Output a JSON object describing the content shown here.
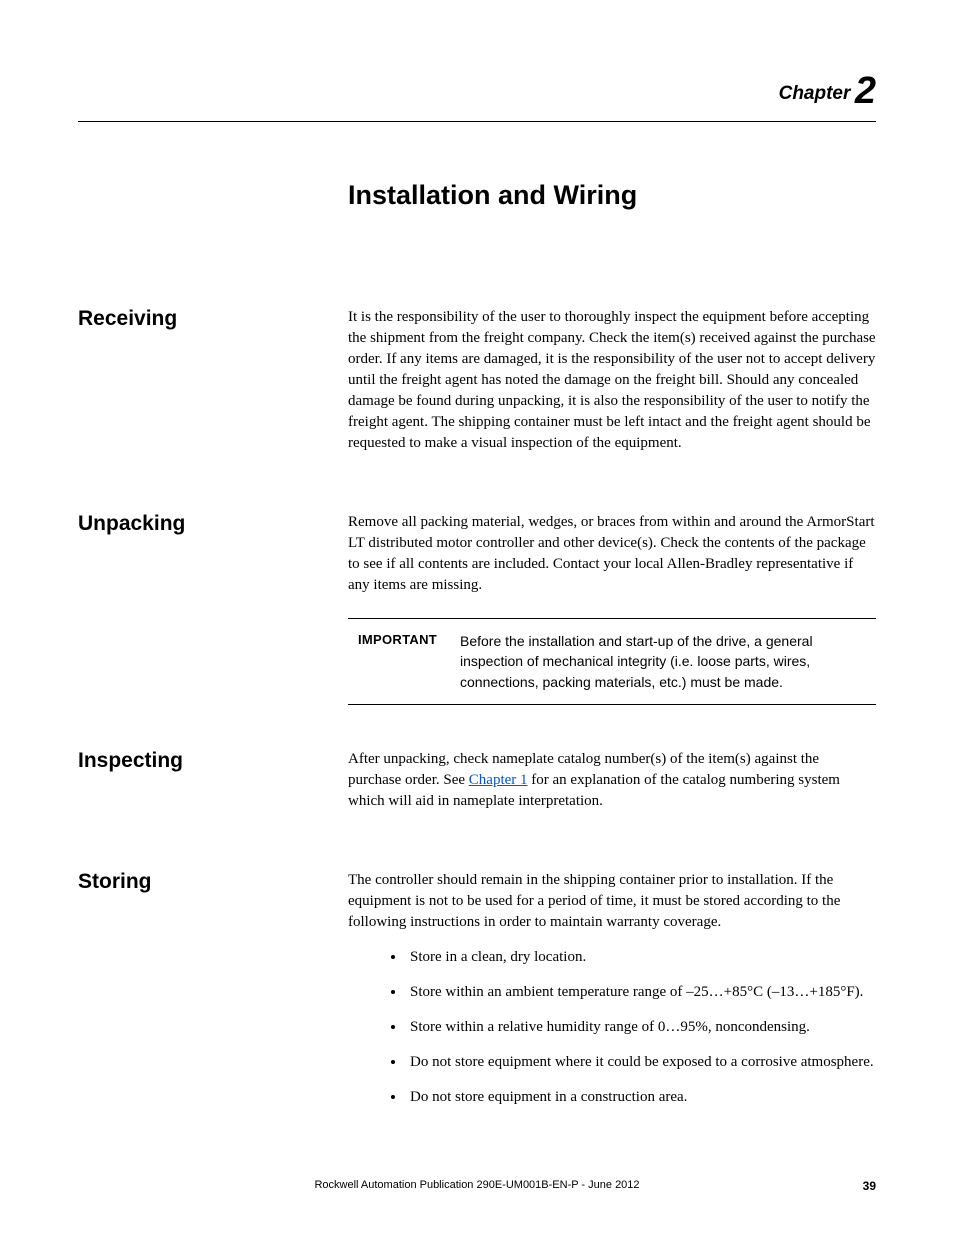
{
  "chapter": {
    "label": "Chapter",
    "number": "2"
  },
  "title": "Installation and Wiring",
  "sections": {
    "receiving": {
      "heading": "Receiving",
      "body": "It is the responsibility of the user to thoroughly inspect the equipment before accepting the shipment from the freight company. Check the item(s) received against the purchase order. If any items are damaged, it is the responsibility of the user not to accept delivery until the freight agent has noted the damage on the freight bill. Should any concealed damage be found during unpacking, it is also the responsibility of the user to notify the freight agent. The shipping container must be left intact and the freight agent should be requested to make a visual inspection of the equipment."
    },
    "unpacking": {
      "heading": "Unpacking",
      "body": "Remove all packing material, wedges, or braces from within and around the ArmorStart LT distributed motor controller and other device(s). Check the contents of the package to see if all contents are included. Contact your local Allen-Bradley representative if any items are missing.",
      "callout_label": "IMPORTANT",
      "callout_text": "Before the installation and start-up of the drive, a general inspection of mechanical integrity (i.e. loose parts, wires, connections, packing materials, etc.) must be made."
    },
    "inspecting": {
      "heading": "Inspecting",
      "body_before": "After unpacking, check nameplate catalog number(s) of the item(s) against the purchase order. See ",
      "link_text": "Chapter 1",
      "body_after": " for an explanation of the catalog numbering system which will aid in nameplate interpretation."
    },
    "storing": {
      "heading": "Storing",
      "intro": "The controller should remain in the shipping container prior to installation. If the equipment is not to be used for a period of time, it must be stored according to the following instructions in order to maintain warranty coverage.",
      "bullets": [
        "Store in a clean, dry location.",
        "Store within an ambient temperature range of –25…+85°C (–13…+185°F).",
        "Store within a relative humidity range of 0…95%, noncondensing.",
        "Do not store equipment where it could be exposed to a corrosive atmosphere.",
        "Do not store equipment in a construction area."
      ]
    }
  },
  "footer": {
    "text": "Rockwell Automation Publication 290E-UM001B-EN-P - June 2012",
    "page": "39"
  }
}
